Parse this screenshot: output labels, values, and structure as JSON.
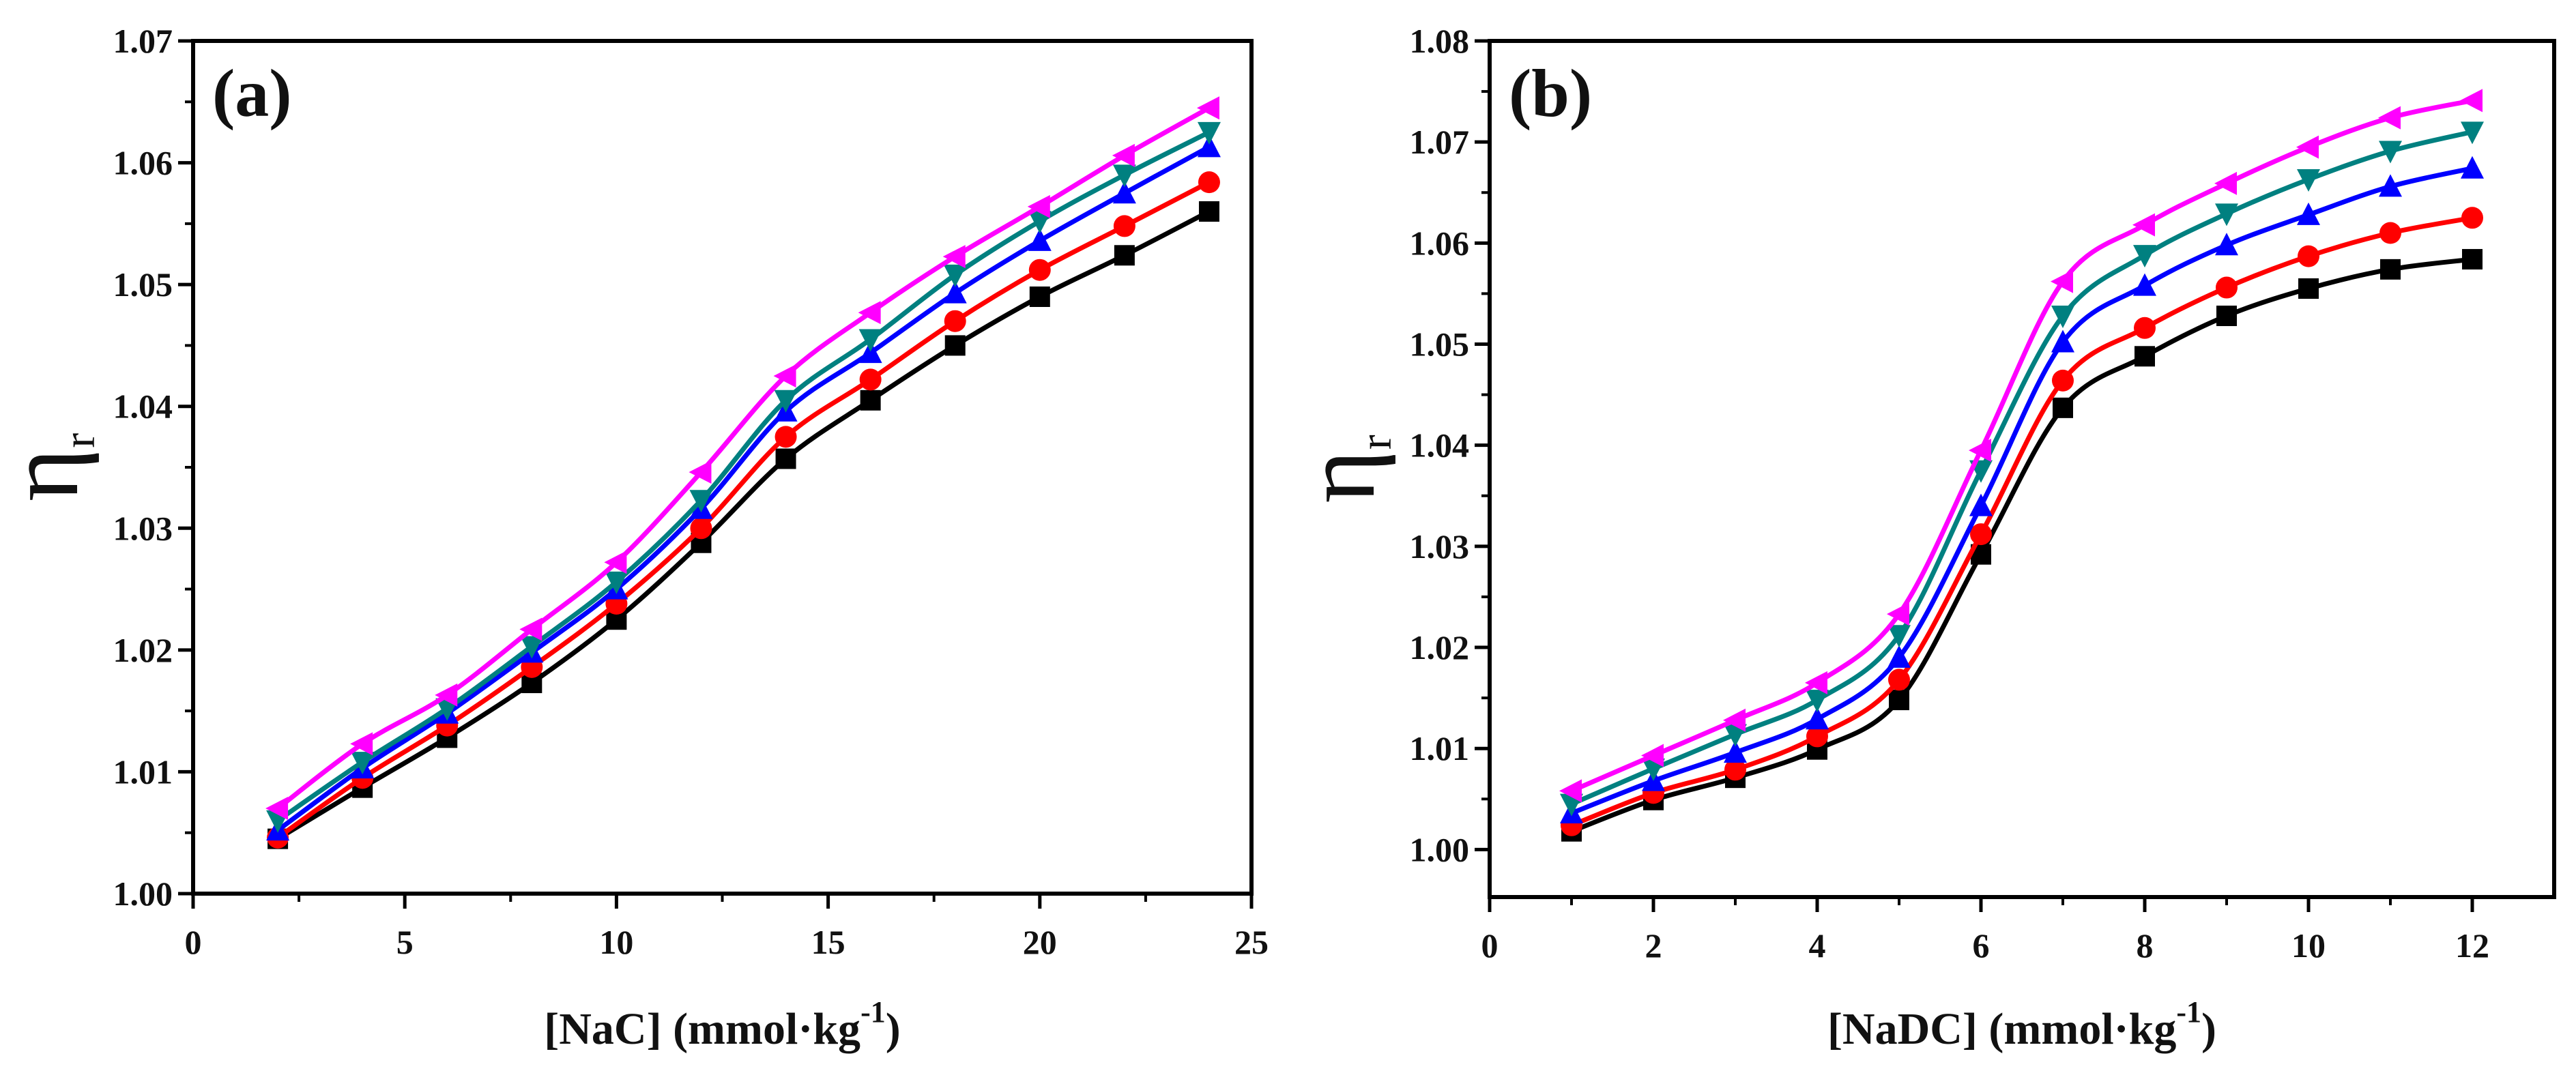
{
  "colors": {
    "s1": "#000000",
    "s2": "#ff0000",
    "s3": "#0000ff",
    "s4": "#008080",
    "s5": "#ff00ff"
  },
  "chart_data": [
    {
      "type": "line",
      "panel_label": "(a)",
      "xlabel": "[NaC] (mmol·kg",
      "xlabel_sup": "-1",
      "xlabel_end": ")",
      "ylabel": "η",
      "ylabel_sub": "r",
      "xlim": [
        0,
        25
      ],
      "ylim": [
        1.0,
        1.07
      ],
      "xticks": [
        "0",
        "5",
        "10",
        "15",
        "20",
        "25"
      ],
      "yticks": [
        "1.00",
        "1.01",
        "1.02",
        "1.03",
        "1.04",
        "1.05",
        "1.06",
        "1.07"
      ],
      "x": [
        2,
        4,
        6,
        8,
        10,
        12,
        14,
        16,
        18,
        20,
        22,
        24
      ],
      "series": [
        {
          "marker": "square",
          "color": "#000000",
          "values": [
            1.0045,
            1.0087,
            1.0128,
            1.0173,
            1.0225,
            1.0288,
            1.0357,
            1.0405,
            1.045,
            1.049,
            1.0524,
            1.056
          ]
        },
        {
          "marker": "circle",
          "color": "#ff0000",
          "values": [
            1.0046,
            1.0095,
            1.0138,
            1.0186,
            1.0238,
            1.03,
            1.0375,
            1.0422,
            1.047,
            1.0512,
            1.0548,
            1.0584
          ]
        },
        {
          "marker": "triangle-up",
          "color": "#0000ff",
          "values": [
            1.0052,
            1.0103,
            1.0148,
            1.0198,
            1.025,
            1.0316,
            1.0396,
            1.0444,
            1.0493,
            1.0536,
            1.0575,
            1.0613
          ]
        },
        {
          "marker": "triangle-down",
          "color": "#008080",
          "values": [
            1.006,
            1.0108,
            1.0152,
            1.0203,
            1.0256,
            1.0323,
            1.0405,
            1.0455,
            1.0508,
            1.0552,
            1.059,
            1.0625
          ]
        },
        {
          "marker": "triangle-left",
          "color": "#ff00ff",
          "values": [
            1.007,
            1.0123,
            1.0163,
            1.0217,
            1.0272,
            1.0346,
            1.0425,
            1.0477,
            1.0523,
            1.0564,
            1.0606,
            1.0645
          ]
        }
      ]
    },
    {
      "type": "line",
      "panel_label": "(b)",
      "xlabel": "[NaDC] (mmol·kg",
      "xlabel_sup": "-1",
      "xlabel_end": ")",
      "ylabel": "η",
      "ylabel_sub": "r",
      "xlim": [
        0,
        13
      ],
      "ylim": [
        0.9953,
        1.08
      ],
      "xticks": [
        "0",
        "2",
        "4",
        "6",
        "8",
        "10",
        "12"
      ],
      "yticks": [
        "1.00",
        "1.01",
        "1.02",
        "1.03",
        "1.04",
        "1.05",
        "1.06",
        "1.07",
        "1.08"
      ],
      "x": [
        1,
        2,
        3,
        4,
        5,
        6,
        7,
        8,
        9,
        10,
        11,
        12
      ],
      "series": [
        {
          "marker": "square",
          "color": "#000000",
          "values": [
            1.0018,
            1.0049,
            1.0071,
            1.0099,
            1.0148,
            1.0292,
            1.0437,
            1.0488,
            1.0528,
            1.0555,
            1.0574,
            1.0584
          ]
        },
        {
          "marker": "circle",
          "color": "#ff0000",
          "values": [
            1.0024,
            1.0056,
            1.0079,
            1.0112,
            1.0168,
            1.0312,
            1.0464,
            1.0516,
            1.0556,
            1.0587,
            1.061,
            1.0625
          ]
        },
        {
          "marker": "triangle-up",
          "color": "#0000ff",
          "values": [
            1.0036,
            1.0068,
            1.0096,
            1.0129,
            1.019,
            1.034,
            1.0502,
            1.0558,
            1.0598,
            1.0628,
            1.0656,
            1.0674
          ]
        },
        {
          "marker": "triangle-down",
          "color": "#008080",
          "values": [
            1.0045,
            1.008,
            1.0114,
            1.0148,
            1.0212,
            1.0375,
            1.0528,
            1.0588,
            1.0629,
            1.0663,
            1.0691,
            1.071
          ]
        },
        {
          "marker": "triangle-left",
          "color": "#ff00ff",
          "values": [
            1.0058,
            1.0093,
            1.0128,
            1.0165,
            1.0233,
            1.0395,
            1.0562,
            1.0618,
            1.0659,
            1.0695,
            1.0724,
            1.0741
          ]
        }
      ]
    }
  ]
}
